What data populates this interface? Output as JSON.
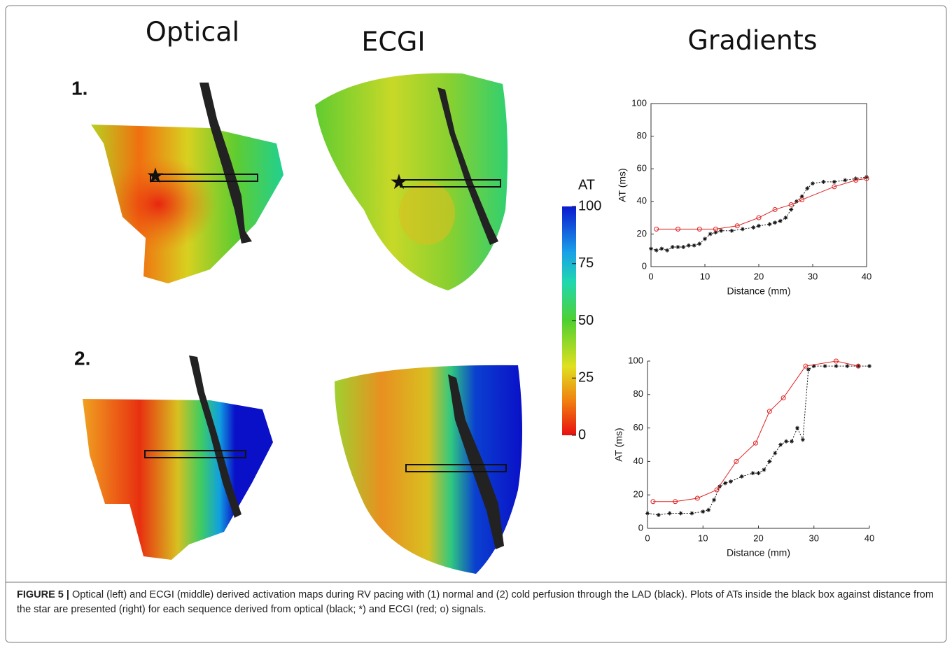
{
  "headers": [
    "Optical",
    "ECGI",
    "Gradients"
  ],
  "row_labels": [
    "1.",
    "2."
  ],
  "colorbar": {
    "title": "AT",
    "lim": [
      0,
      100
    ],
    "ticks": [
      0,
      25,
      50,
      75,
      100
    ]
  },
  "chart_data": [
    {
      "type": "line",
      "xlabel": "Distance (mm)",
      "ylabel": "AT (ms)",
      "xlim": [
        0,
        40
      ],
      "ylim": [
        0,
        100
      ],
      "xticks": [
        0,
        10,
        20,
        30,
        40
      ],
      "yticks": [
        0,
        20,
        40,
        60,
        80,
        100
      ],
      "series": [
        {
          "marker": "*",
          "color": "#111111",
          "x": [
            0,
            1,
            2,
            3,
            4,
            5,
            6,
            7,
            8,
            9,
            10,
            11,
            12,
            13,
            15,
            17,
            19,
            20,
            22,
            23,
            24,
            25,
            26,
            27,
            28,
            29,
            30,
            32,
            34,
            36,
            38,
            40
          ],
          "values": [
            11,
            10,
            11,
            10,
            12,
            12,
            12,
            13,
            13,
            14,
            17,
            20,
            21,
            22,
            22,
            23,
            24,
            25,
            26,
            27,
            28,
            30,
            35,
            40,
            43,
            48,
            51,
            52,
            52,
            53,
            54,
            55
          ]
        },
        {
          "marker": "o",
          "color": "#e02020",
          "x": [
            1,
            5,
            9,
            12,
            16,
            20,
            23,
            26,
            28,
            34,
            38,
            40
          ],
          "values": [
            23,
            23,
            23,
            23,
            25,
            30,
            35,
            38,
            41,
            49,
            53,
            54
          ]
        }
      ]
    },
    {
      "type": "line",
      "xlabel": "Distance (mm)",
      "ylabel": "AT (ms)",
      "xlim": [
        0,
        40
      ],
      "ylim": [
        0,
        100
      ],
      "xticks": [
        0,
        10,
        20,
        30,
        40
      ],
      "yticks": [
        0,
        20,
        40,
        60,
        80,
        100
      ],
      "series": [
        {
          "marker": "*",
          "color": "#111111",
          "x": [
            0,
            2,
            4,
            6,
            8,
            10,
            11,
            12,
            13,
            14,
            15,
            17,
            19,
            20,
            21,
            22,
            23,
            24,
            25,
            26,
            27,
            28,
            29,
            30,
            32,
            34,
            36,
            38,
            40
          ],
          "values": [
            9,
            8,
            9,
            9,
            9,
            10,
            11,
            17,
            25,
            27,
            28,
            31,
            33,
            33,
            35,
            40,
            45,
            50,
            52,
            52,
            60,
            53,
            95,
            97,
            97,
            97,
            97,
            97,
            97
          ]
        },
        {
          "marker": "o",
          "color": "#e02020",
          "x": [
            1,
            5,
            9,
            12.5,
            16,
            19.5,
            22,
            24.5,
            28.5,
            34,
            38
          ],
          "values": [
            16,
            16,
            18,
            23,
            40,
            51,
            70,
            78,
            97,
            100,
            97
          ]
        }
      ]
    }
  ],
  "caption": {
    "label": "FIGURE 5 |",
    "text": " Optical (left) and ECGI (middle) derived activation maps during RV pacing with (1) normal and (2) cold perfusion through the LAD (black). Plots of ATs inside the black box against distance from the star are presented (right) for each sequence derived from optical (black; *) and ECGI (red; o) signals."
  }
}
